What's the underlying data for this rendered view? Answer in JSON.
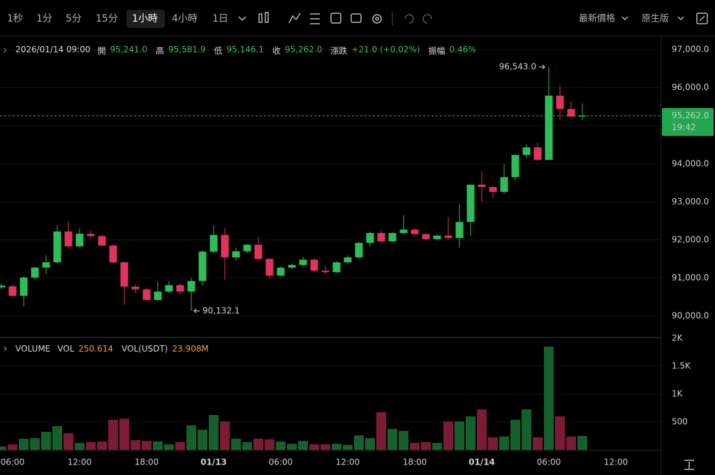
{
  "toolbar": {
    "intervals": [
      "1秒",
      "1分",
      "5分",
      "15分",
      "1小時",
      "4小時",
      "1日"
    ],
    "selected": 4,
    "price_mode": "最新價格",
    "view": "原生版"
  },
  "ohlc_legend": {
    "time": "2026/01/14 09:00",
    "items": [
      {
        "label": "開",
        "value": "95,241.0"
      },
      {
        "label": "高",
        "value": "95,581.9"
      },
      {
        "label": "低",
        "value": "95,146.1"
      },
      {
        "label": "收",
        "value": "95,262.0"
      },
      {
        "label": "漲跌",
        "value": "+21.0 (+0.02%)"
      },
      {
        "label": "振幅",
        "value": "0.46%"
      }
    ]
  },
  "chart_data": [
    {
      "type": "candlestick",
      "categories": [
        null,
        "06:00",
        null,
        null,
        null,
        null,
        null,
        "12:00",
        null,
        null,
        null,
        null,
        null,
        "18:00",
        null,
        null,
        null,
        null,
        null,
        "01/13",
        null,
        null,
        null,
        null,
        null,
        "06:00",
        null,
        null,
        null,
        null,
        null,
        "12:00",
        null,
        null,
        null,
        null,
        null,
        "18:00",
        null,
        null,
        null,
        null,
        null,
        "01/14",
        null,
        null,
        null,
        null,
        null,
        "06:00",
        null,
        null,
        null,
        null,
        null,
        "12:00"
      ],
      "open": [
        90750,
        90780,
        90530,
        91010,
        91270,
        91410,
        92220,
        91830,
        92160,
        92100,
        91850,
        91410,
        90770,
        90700,
        90420,
        90640,
        90810,
        90640,
        90920,
        91690,
        92130,
        91540,
        91700,
        91870,
        91500,
        91060,
        91270,
        91340,
        91480,
        91190,
        91150,
        91410,
        91540,
        91920,
        92180,
        91960,
        92180,
        92270,
        92150,
        92020,
        92110,
        92050,
        92470,
        93450,
        93390,
        93260,
        93650,
        94230,
        94430,
        94100,
        95790,
        95440,
        95241,
        null,
        null,
        null
      ],
      "high": [
        90850,
        90820,
        91050,
        91300,
        91600,
        92380,
        92480,
        92300,
        92250,
        92130,
        91880,
        91430,
        90830,
        90750,
        90900,
        90920,
        90850,
        91000,
        91720,
        92380,
        92300,
        91800,
        91900,
        92080,
        91520,
        91300,
        91380,
        91560,
        91520,
        91310,
        91440,
        91600,
        91950,
        92220,
        92230,
        92200,
        92650,
        92310,
        92180,
        92150,
        92600,
        92950,
        93450,
        93800,
        93400,
        94000,
        94250,
        94520,
        94560,
        96543,
        96080,
        95650,
        95581.9,
        null,
        null,
        null
      ],
      "low": [
        90700,
        90500,
        90240,
        90950,
        91100,
        91380,
        91800,
        91800,
        92050,
        91830,
        91380,
        90300,
        90600,
        90380,
        90400,
        90600,
        90580,
        90132.1,
        90800,
        91650,
        90950,
        91450,
        91650,
        91450,
        90980,
        91040,
        91240,
        91300,
        91150,
        91100,
        91120,
        91380,
        91500,
        91820,
        91930,
        91940,
        92150,
        92080,
        91990,
        91970,
        92000,
        91800,
        92100,
        93000,
        93100,
        93200,
        93550,
        94150,
        94080,
        94100,
        95150,
        95250,
        95146.1,
        null,
        null,
        null
      ],
      "close": [
        90800,
        90530,
        91010,
        91270,
        91410,
        92220,
        91830,
        92160,
        92100,
        91850,
        91410,
        90770,
        90700,
        90420,
        90640,
        90810,
        90640,
        90920,
        91690,
        92130,
        91540,
        91700,
        91870,
        91500,
        91060,
        91270,
        91340,
        91480,
        91190,
        91150,
        91410,
        91540,
        91920,
        92180,
        91960,
        92180,
        92270,
        92150,
        92020,
        92110,
        92050,
        92470,
        93450,
        93390,
        93260,
        93650,
        94230,
        94430,
        94100,
        95790,
        95440,
        95241,
        95262.0,
        null,
        null,
        null
      ],
      "up_color": "#2ebd5a",
      "down_color": "#e0345c",
      "ylim": [
        89450,
        97350
      ],
      "yticks": [
        {
          "value": 90000,
          "label": "90,000.0"
        },
        {
          "value": 91000,
          "label": "91,000.0"
        },
        {
          "value": 92000,
          "label": "92,000.0"
        },
        {
          "value": 93000,
          "label": "93,000.0"
        },
        {
          "value": 94000,
          "label": "94,000.0"
        },
        {
          "value": 95000,
          "label": "95,000.0"
        },
        {
          "value": 96000,
          "label": "96,000.0"
        },
        {
          "value": 97000,
          "label": "97,000.0"
        }
      ],
      "grid": true,
      "annotations": [
        {
          "index": 49,
          "value": 96543,
          "label": "96,543.0",
          "side": "left"
        },
        {
          "index": 17,
          "value": 90132.1,
          "label": "90,132.1",
          "side": "right"
        }
      ],
      "last_price": {
        "value": 95262.0,
        "label": "95,262.0",
        "countdown": "19:42"
      }
    },
    {
      "type": "bar",
      "title": "VOLUME",
      "legend": [
        {
          "label": "VOL",
          "value": "250.614"
        },
        {
          "label": "VOL(USDT)",
          "value": "23.908M"
        }
      ],
      "values": [
        60,
        100,
        200,
        210,
        325,
        425,
        300,
        125,
        140,
        150,
        540,
        560,
        175,
        160,
        150,
        100,
        140,
        440,
        360,
        625,
        510,
        200,
        140,
        200,
        190,
        150,
        110,
        160,
        100,
        100,
        110,
        90,
        260,
        210,
        675,
        375,
        340,
        125,
        140,
        125,
        510,
        510,
        600,
        725,
        225,
        240,
        540,
        725,
        225,
        1850,
        600,
        240,
        250.614,
        null,
        null,
        null
      ],
      "up_color": "#16602e",
      "down_color": "#7c1b36",
      "ylim": [
        0,
        2025
      ],
      "yticks": [
        500,
        {
          "value": 1000,
          "label": "1K"
        },
        {
          "value": 1500,
          "label": "1.5K"
        },
        {
          "value": 2000,
          "label": "2K"
        }
      ],
      "grid": true
    }
  ]
}
